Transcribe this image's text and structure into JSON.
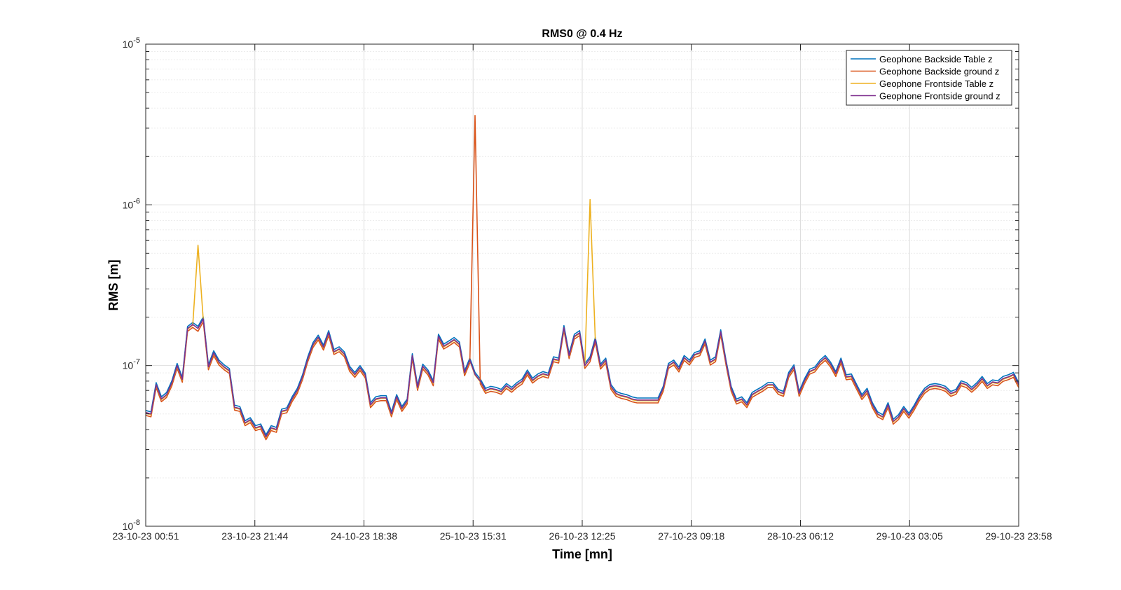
{
  "chart_data": {
    "type": "line",
    "title": "RMS0 @ 0.4 Hz",
    "xlabel": "Time [mn]",
    "ylabel": "RMS [m]",
    "yscale": "log",
    "ylim": [
      1e-08,
      1e-05
    ],
    "ytick_mantissa": "10",
    "ytick_exponents": [
      "-8",
      "-7",
      "-6",
      "-5"
    ],
    "grid": true,
    "legend_position": "top-right",
    "x_ticks": [
      "23-10-23 00:51",
      "23-10-23 21:44",
      "24-10-23 18:38",
      "25-10-23 15:31",
      "26-10-23 12:25",
      "27-10-23 09:18",
      "28-10-23 06:12",
      "29-10-23 03:05",
      "29-10-23 23:58"
    ],
    "xlim": [
      "23-10-23 00:51",
      "29-10-23 23:58"
    ],
    "baseline_values": [
      5.1e-08,
      5e-08,
      7.6e-08,
      6.2e-08,
      6.6e-08,
      7.8e-08,
      1e-07,
      8.2e-08,
      1.7e-07,
      1.8e-07,
      1.7e-07,
      1.95e-07,
      9.8e-08,
      1.2e-07,
      1.05e-07,
      9.8e-08,
      9.3e-08,
      5.5e-08,
      5.4e-08,
      4.4e-08,
      4.6e-08,
      4.1e-08,
      4.2e-08,
      3.6e-08,
      4.1e-08,
      4e-08,
      5.2e-08,
      5.3e-08,
      6.2e-08,
      7e-08,
      8.5e-08,
      1.1e-07,
      1.35e-07,
      1.5e-07,
      1.3e-07,
      1.6e-07,
      1.22e-07,
      1.27e-07,
      1.18e-07,
      9.6e-08,
      8.8e-08,
      9.7e-08,
      8.7e-08,
      5.7e-08,
      6.2e-08,
      6.3e-08,
      6.3e-08,
      5e-08,
      6.4e-08,
      5.4e-08,
      6e-08,
      1.15e-07,
      7.3e-08,
      9.9e-08,
      9.1e-08,
      7.8e-08,
      1.52e-07,
      1.32e-07,
      1.38e-07,
      1.45e-07,
      1.36e-07,
      9e-08,
      1.08e-07,
      8.8e-08,
      8e-08,
      7e-08,
      7.2e-08,
      7.1e-08,
      6.9e-08,
      7.5e-08,
      7.1e-08,
      7.6e-08,
      8e-08,
      9.1e-08,
      8.1e-08,
      8.6e-08,
      8.9e-08,
      8.7e-08,
      1.1e-07,
      1.08e-07,
      1.72e-07,
      1.15e-07,
      1.52e-07,
      1.6e-07,
      1e-07,
      1.1e-07,
      1.45e-07,
      9.9e-08,
      1.08e-07,
      7.4e-08,
      6.7e-08,
      6.5e-08,
      6.4e-08,
      6.2e-08,
      6.1e-08,
      6.1e-08,
      6.1e-08,
      6.1e-08,
      6.1e-08,
      7.2e-08,
      1e-07,
      1.05e-07,
      9.5e-08,
      1.12e-07,
      1.05e-07,
      1.17e-07,
      1.2e-07,
      1.42e-07,
      1.05e-07,
      1.1e-07,
      1.62e-07,
      1.05e-07,
      7.2e-08,
      6e-08,
      6.2e-08,
      5.7e-08,
      6.6e-08,
      6.9e-08,
      7.2e-08,
      7.6e-08,
      7.6e-08,
      6.9e-08,
      6.7e-08,
      8.8e-08,
      9.8e-08,
      6.7e-08,
      8e-08,
      9.2e-08,
      9.5e-08,
      1.05e-07,
      1.12e-07,
      1.02e-07,
      8.9e-08,
      1.08e-07,
      8.5e-08,
      8.6e-08,
      7.4e-08,
      6.4e-08,
      7e-08,
      5.7e-08,
      5e-08,
      4.8e-08,
      5.7e-08,
      4.5e-08,
      4.8e-08,
      5.4e-08,
      4.9e-08,
      5.5e-08,
      6.3e-08,
      7e-08,
      7.4e-08,
      7.5e-08,
      7.4e-08,
      7.2e-08,
      6.7e-08,
      6.9e-08,
      7.8e-08,
      7.6e-08,
      7.1e-08,
      7.6e-08,
      8.3e-08,
      7.5e-08,
      7.9e-08,
      7.8e-08,
      8.3e-08,
      8.5e-08,
      8.8e-08,
      7.6e-08
    ],
    "series": [
      {
        "name": "Geophone Backside Table z",
        "color": "#0072BD",
        "offset": 1.03,
        "spikes": []
      },
      {
        "name": "Geophone Backside ground z",
        "color": "#D95319",
        "offset": 0.96,
        "spikes": [
          {
            "index": 63,
            "value": 3.6e-06
          }
        ]
      },
      {
        "name": "Geophone Frontside Table z",
        "color": "#EDB120",
        "offset": 0.99,
        "spikes": [
          {
            "index": 10,
            "value": 5.6e-07
          },
          {
            "index": 85,
            "value": 1.08e-06
          }
        ]
      },
      {
        "name": "Geophone Frontside ground z",
        "color": "#7E2F8E",
        "offset": 1.0,
        "spikes": []
      }
    ]
  }
}
